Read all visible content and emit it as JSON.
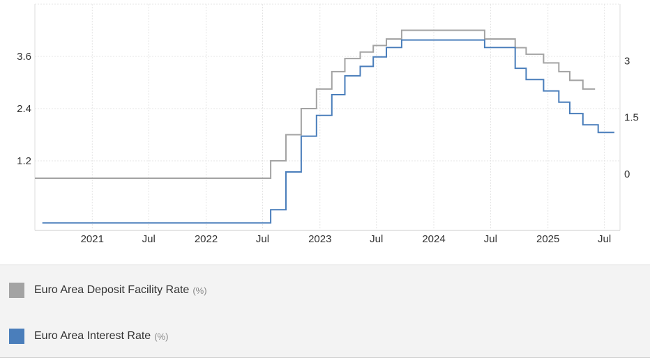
{
  "chart_data": {
    "type": "line",
    "x_ticks": [
      "2021",
      "Jul",
      "2022",
      "Jul",
      "2023",
      "Jul",
      "2024",
      "Jul",
      "2025",
      "Jul"
    ],
    "x_range": [
      "2020-07-01",
      "2025-08-20"
    ],
    "left_axis": {
      "ticks": [
        "1.2",
        "2.4",
        "3.6"
      ],
      "range": [
        -0.4,
        4.8
      ]
    },
    "right_axis": {
      "ticks": [
        "0",
        "1.5",
        "3"
      ],
      "range": [
        -1.5,
        4.5
      ]
    },
    "grid": true,
    "legend_placement": "bottom",
    "series": [
      {
        "name": "Euro Area Deposit Facility Rate",
        "unit": "(%)",
        "color": "#a3a3a3",
        "axis": "left",
        "step": true,
        "points": [
          [
            "2020-07-01",
            0.8
          ],
          [
            "2022-07-27",
            1.2
          ],
          [
            "2022-09-14",
            1.8
          ],
          [
            "2022-11-02",
            2.4
          ],
          [
            "2022-12-21",
            2.85
          ],
          [
            "2023-02-08",
            3.25
          ],
          [
            "2023-03-22",
            3.55
          ],
          [
            "2023-05-10",
            3.7
          ],
          [
            "2023-06-21",
            3.85
          ],
          [
            "2023-08-02",
            4.0
          ],
          [
            "2023-09-20",
            4.2
          ],
          [
            "2024-06-12",
            4.0
          ],
          [
            "2024-09-18",
            3.8
          ],
          [
            "2024-10-23",
            3.65
          ],
          [
            "2024-12-18",
            3.45
          ],
          [
            "2025-02-05",
            3.25
          ],
          [
            "2025-03-12",
            3.05
          ],
          [
            "2025-04-23",
            2.85
          ],
          [
            "2025-06-01",
            2.85
          ]
        ]
      },
      {
        "name": "Euro Area Interest Rate",
        "unit": "(%)",
        "color": "#4a7ebb",
        "axis": "right",
        "step": true,
        "points": [
          [
            "2020-07-25",
            -1.3
          ],
          [
            "2022-07-27",
            -0.95
          ],
          [
            "2022-09-14",
            0.05
          ],
          [
            "2022-11-02",
            1.0
          ],
          [
            "2022-12-21",
            1.55
          ],
          [
            "2023-02-08",
            2.1
          ],
          [
            "2023-03-22",
            2.6
          ],
          [
            "2023-05-10",
            2.85
          ],
          [
            "2023-06-21",
            3.1
          ],
          [
            "2023-08-02",
            3.35
          ],
          [
            "2023-09-20",
            3.55
          ],
          [
            "2024-06-12",
            3.35
          ],
          [
            "2024-09-18",
            2.8
          ],
          [
            "2024-10-23",
            2.5
          ],
          [
            "2024-12-18",
            2.2
          ],
          [
            "2025-02-05",
            1.9
          ],
          [
            "2025-03-12",
            1.6
          ],
          [
            "2025-04-23",
            1.3
          ],
          [
            "2025-06-11",
            1.1
          ],
          [
            "2025-08-02",
            1.1
          ]
        ]
      }
    ]
  }
}
